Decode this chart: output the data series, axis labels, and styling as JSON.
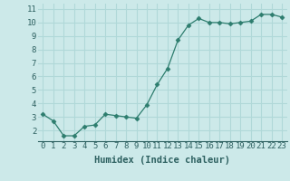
{
  "x": [
    0,
    1,
    2,
    3,
    4,
    5,
    6,
    7,
    8,
    9,
    10,
    11,
    12,
    13,
    14,
    15,
    16,
    17,
    18,
    19,
    20,
    21,
    22,
    23
  ],
  "y": [
    3.2,
    2.7,
    1.6,
    1.6,
    2.3,
    2.4,
    3.2,
    3.1,
    3.0,
    2.9,
    3.9,
    5.4,
    6.6,
    8.7,
    9.8,
    10.3,
    10.0,
    10.0,
    9.9,
    10.0,
    10.1,
    10.6,
    10.6,
    10.4
  ],
  "xlabel": "Humidex (Indice chaleur)",
  "xlim": [
    -0.5,
    23.5
  ],
  "ylim": [
    1.2,
    11.4
  ],
  "yticks": [
    2,
    3,
    4,
    5,
    6,
    7,
    8,
    9,
    10,
    11
  ],
  "xticks": [
    0,
    1,
    2,
    3,
    4,
    5,
    6,
    7,
    8,
    9,
    10,
    11,
    12,
    13,
    14,
    15,
    16,
    17,
    18,
    19,
    20,
    21,
    22,
    23
  ],
  "line_color": "#2d7d6e",
  "marker": "D",
  "marker_size": 2.5,
  "bg_color": "#cce9e9",
  "grid_color": "#b0d8d8",
  "axis_fontsize": 6.5,
  "xlabel_fontsize": 7.5,
  "tick_color": "#2d6060"
}
